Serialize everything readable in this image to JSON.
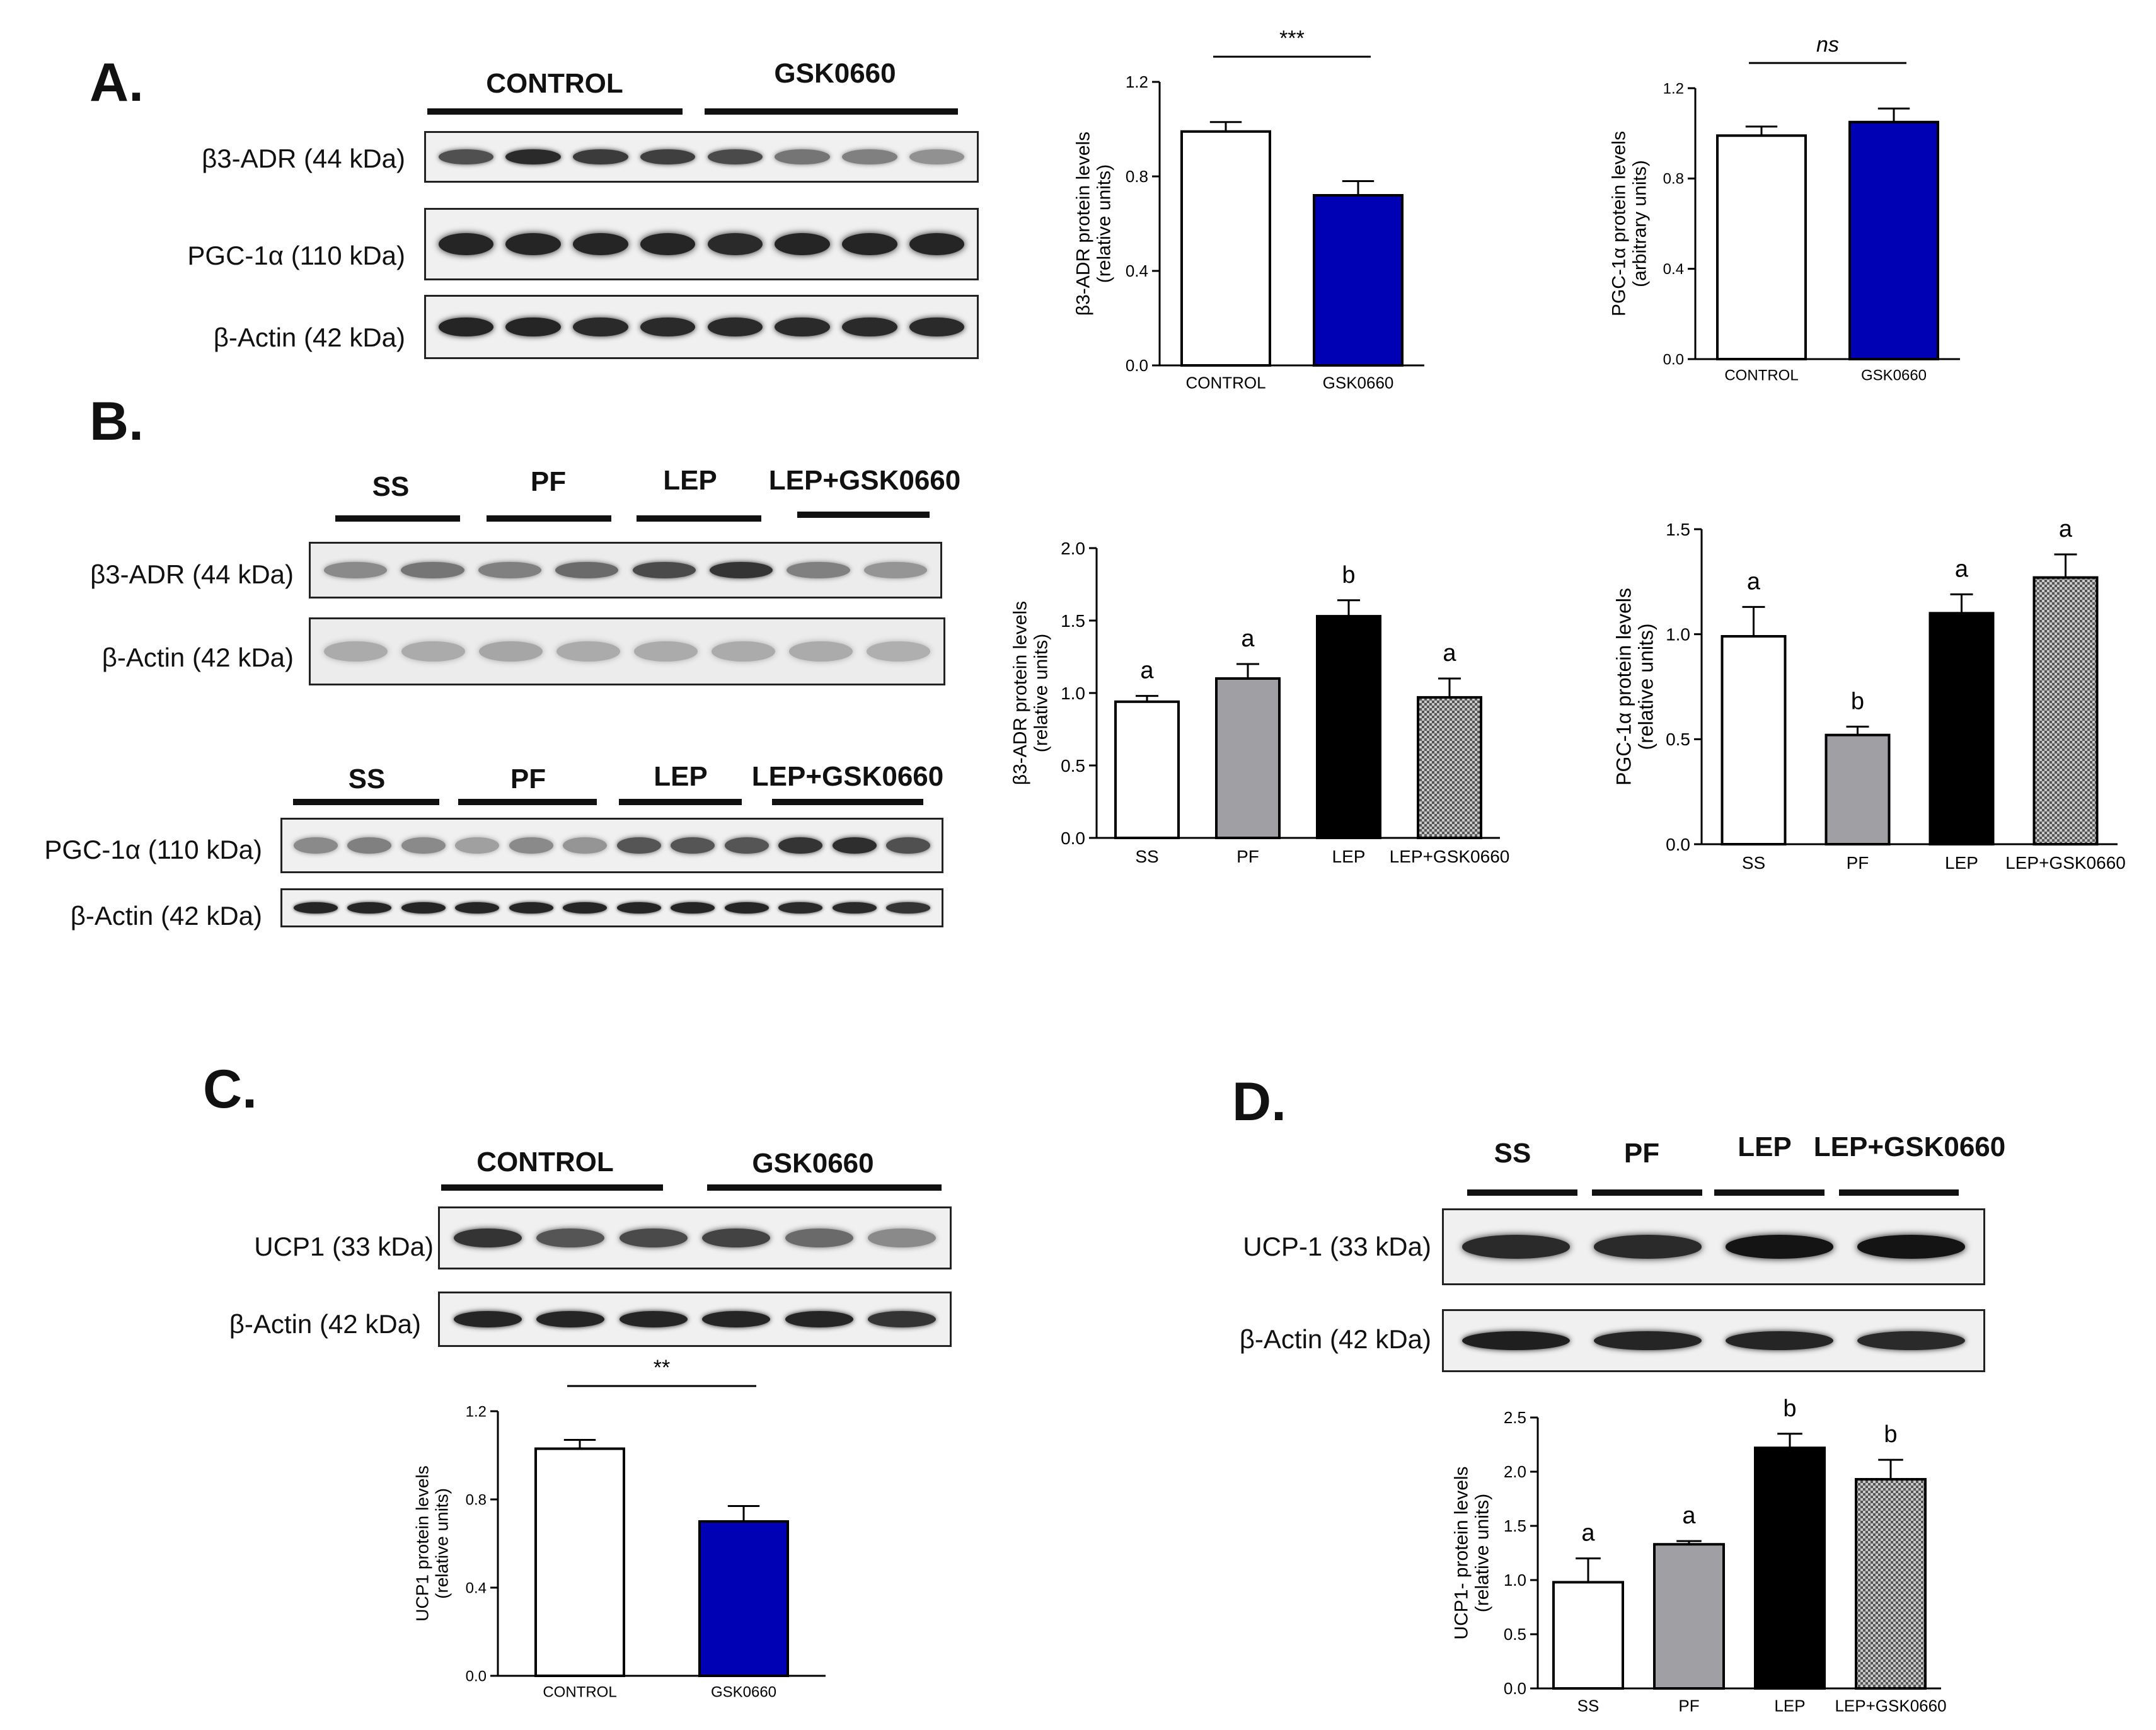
{
  "panels": {
    "A": {
      "letter": "A.",
      "groups": [
        "CONTROL",
        "GSK0660"
      ],
      "blots": [
        {
          "label": "β3-ADR (44 kDa)",
          "lanes": [
            0.72,
            0.9,
            0.82,
            0.8,
            0.75,
            0.55,
            0.5,
            0.42
          ]
        },
        {
          "label": "PGC-1α (110 kDa)",
          "lanes": [
            0.92,
            0.92,
            0.92,
            0.92,
            0.9,
            0.92,
            0.92,
            0.92
          ]
        },
        {
          "label": "β-Actin (42 kDa)",
          "lanes": [
            0.92,
            0.92,
            0.9,
            0.9,
            0.9,
            0.9,
            0.9,
            0.9
          ]
        }
      ]
    },
    "B": {
      "letter": "B.",
      "top_groups": [
        "SS",
        "PF",
        "LEP",
        "LEP+GSK0660"
      ],
      "top_blots": [
        {
          "label": "β3-ADR (44 kDa)",
          "lanes": [
            0.45,
            0.55,
            0.5,
            0.6,
            0.75,
            0.85,
            0.5,
            0.4
          ]
        },
        {
          "label": "β-Actin (42 kDa)",
          "lanes": [
            0.3,
            0.3,
            0.32,
            0.3,
            0.3,
            0.3,
            0.3,
            0.28
          ]
        }
      ],
      "bottom_groups": [
        "SS",
        "PF",
        "LEP",
        "LEP+GSK0660"
      ],
      "bottom_blots": [
        {
          "label": "PGC-1α (110 kDa)",
          "lanes": [
            0.45,
            0.5,
            0.45,
            0.35,
            0.45,
            0.4,
            0.7,
            0.7,
            0.7,
            0.85,
            0.88,
            0.72
          ]
        },
        {
          "label": "β-Actin (42 kDa)",
          "lanes": [
            0.92,
            0.92,
            0.92,
            0.92,
            0.92,
            0.92,
            0.92,
            0.92,
            0.92,
            0.9,
            0.9,
            0.85
          ]
        }
      ]
    },
    "C": {
      "letter": "C.",
      "groups": [
        "CONTROL",
        "GSK0660"
      ],
      "blots": [
        {
          "label": "UCP1 (33 kDa)",
          "lanes": [
            0.85,
            0.7,
            0.75,
            0.78,
            0.6,
            0.45
          ]
        },
        {
          "label": "β-Actin (42 kDa)",
          "lanes": [
            0.92,
            0.92,
            0.92,
            0.92,
            0.92,
            0.85
          ]
        }
      ]
    },
    "D": {
      "letter": "D.",
      "groups": [
        "SS",
        "PF",
        "LEP",
        "LEP+GSK0660"
      ],
      "blots": [
        {
          "label": "UCP-1 (33 kDa)",
          "lanes": [
            0.9,
            0.9,
            1.0,
            1.0
          ]
        },
        {
          "label": "β-Actin (42 kDa)",
          "lanes": [
            0.95,
            0.92,
            0.92,
            0.9
          ]
        }
      ]
    }
  },
  "chart_data": [
    {
      "id": "A1",
      "type": "bar",
      "ylabel": "β3-ADR protein levels\n(relative units)",
      "categories": [
        "CONTROL",
        "GSK0660"
      ],
      "values": [
        0.99,
        0.72
      ],
      "errors": [
        0.04,
        0.06
      ],
      "fills": [
        "#ffffff",
        "#0000b4"
      ],
      "patterns": [
        "none",
        "none"
      ],
      "ylim": [
        0,
        1.2
      ],
      "ticks": [
        "0.0",
        "0.4",
        "0.8",
        "1.2"
      ],
      "significance": "***",
      "letters": []
    },
    {
      "id": "A2",
      "type": "bar",
      "ylabel": "PGC-1α protein levels\n(arbitrary units)",
      "categories": [
        "CONTROL",
        "GSK0660"
      ],
      "values": [
        0.99,
        1.05
      ],
      "errors": [
        0.04,
        0.06
      ],
      "fills": [
        "#ffffff",
        "#0000b4"
      ],
      "patterns": [
        "none",
        "none"
      ],
      "ylim": [
        0,
        1.2
      ],
      "ticks": [
        "0.0",
        "0.4",
        "0.8",
        "1.2"
      ],
      "significance": "ns",
      "letters": []
    },
    {
      "id": "B1",
      "type": "bar",
      "ylabel": "β3-ADR protein levels\n(relative units)",
      "categories": [
        "SS",
        "PF",
        "LEP",
        "LEP+GSK0660"
      ],
      "values": [
        0.94,
        1.1,
        1.53,
        0.97
      ],
      "errors": [
        0.04,
        0.1,
        0.11,
        0.13
      ],
      "fills": [
        "#ffffff",
        "#a0a0a4",
        "#000000",
        "#888888"
      ],
      "patterns": [
        "none",
        "none",
        "none",
        "checker"
      ],
      "ylim": [
        0,
        2.0
      ],
      "ticks": [
        "0.0",
        "0.5",
        "1.0",
        "1.5",
        "2.0"
      ],
      "significance": "",
      "letters": [
        "a",
        "a",
        "b",
        "a"
      ]
    },
    {
      "id": "B2",
      "type": "bar",
      "ylabel": "PGC-1α protein levels\n(relative units)",
      "categories": [
        "SS",
        "PF",
        "LEP",
        "LEP+GSK0660"
      ],
      "values": [
        0.99,
        0.52,
        1.1,
        1.27
      ],
      "errors": [
        0.14,
        0.04,
        0.09,
        0.11
      ],
      "fills": [
        "#ffffff",
        "#a0a0a4",
        "#000000",
        "#888888"
      ],
      "patterns": [
        "none",
        "none",
        "none",
        "checker"
      ],
      "ylim": [
        0,
        1.5
      ],
      "ticks": [
        "0.0",
        "0.5",
        "1.0",
        "1.5"
      ],
      "significance": "",
      "letters": [
        "a",
        "b",
        "a",
        "a"
      ]
    },
    {
      "id": "C1",
      "type": "bar",
      "ylabel": "UCP1 protein levels\n(relative units)",
      "categories": [
        "CONTROL",
        "GSK0660"
      ],
      "values": [
        1.03,
        0.7
      ],
      "errors": [
        0.04,
        0.07
      ],
      "fills": [
        "#ffffff",
        "#0000b4"
      ],
      "patterns": [
        "none",
        "none"
      ],
      "ylim": [
        0,
        1.2
      ],
      "ticks": [
        "0.0",
        "0.4",
        "0.8",
        "1.2"
      ],
      "significance": "**",
      "letters": []
    },
    {
      "id": "D1",
      "type": "bar",
      "ylabel": "UCP1- protein levels\n(relative units)",
      "categories": [
        "SS",
        "PF",
        "LEP",
        "LEP+GSK0660"
      ],
      "values": [
        0.98,
        1.33,
        2.22,
        1.93
      ],
      "errors": [
        0.22,
        0.03,
        0.13,
        0.18
      ],
      "fills": [
        "#ffffff",
        "#a0a0a4",
        "#000000",
        "#888888"
      ],
      "patterns": [
        "none",
        "none",
        "none",
        "checker"
      ],
      "ylim": [
        0,
        2.5
      ],
      "ticks": [
        "0.0",
        "0.5",
        "1.0",
        "1.5",
        "2.0",
        "2.5"
      ],
      "significance": "",
      "letters": [
        "a",
        "a",
        "b",
        "b"
      ]
    }
  ]
}
